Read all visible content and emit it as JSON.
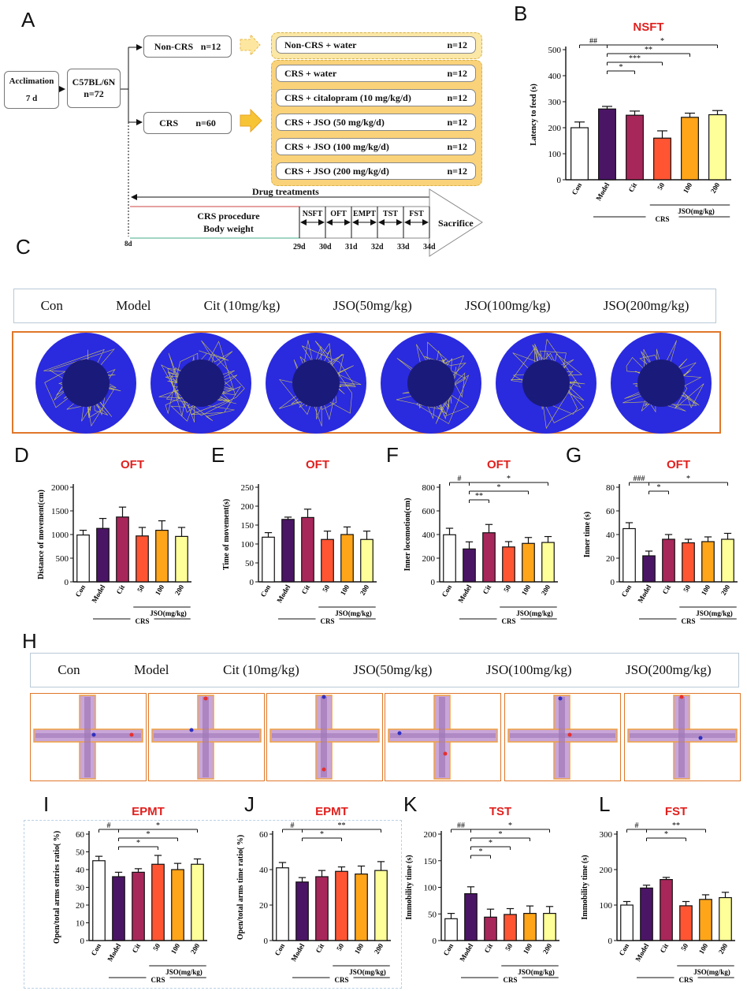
{
  "colors": {
    "con": "#ffffff",
    "model": "#4b1566",
    "cit": "#a8275a",
    "jso50": "#ff5533",
    "jso100": "#ffa51a",
    "jso200": "#ffff99",
    "title": "#e0201e"
  },
  "panel_a": {
    "label": "A",
    "acclimation": "Acclimation",
    "acclimation_days": "7 d",
    "strain": "C57BL/6N",
    "strain_n": "n=72",
    "noncrs": "Non-CRS",
    "noncrs_n": "n=12",
    "crs": "CRS",
    "crs_n": "n=60",
    "groups": [
      {
        "name": "Non-CRS + water",
        "n": "n=12"
      },
      {
        "name": "CRS + water",
        "n": "n=12"
      },
      {
        "name": "CRS + citalopram (10 mg/kg/d)",
        "n": "n=12"
      },
      {
        "name": "CRS + JSO (50 mg/kg/d)",
        "n": "n=12"
      },
      {
        "name": "CRS + JSO (100 mg/kg/d)",
        "n": "n=12"
      },
      {
        "name": "CRS + JSO (200 mg/kg/d)",
        "n": "n=12"
      }
    ],
    "drug_treatments": "Drug treatments",
    "crs_procedure": "CRS procedure",
    "body_weight": "Body weight",
    "tests": [
      "NSFT",
      "OFT",
      "EMPT",
      "TST",
      "FST"
    ],
    "days": [
      "8d",
      "29d",
      "30d",
      "31d",
      "32d",
      "33d",
      "34d"
    ],
    "sacrifice": "Sacrifice"
  },
  "panel_c": {
    "label": "C",
    "headers": [
      "Con",
      "Model",
      "Cit (10mg/kg)",
      "JSO(50mg/kg)",
      "JSO(100mg/kg)",
      "JSO(200mg/kg)"
    ]
  },
  "panel_h": {
    "label": "H",
    "headers": [
      "Con",
      "Model",
      "Cit (10mg/kg)",
      "JSO(50mg/kg)",
      "JSO(100mg/kg)",
      "JSO(200mg/kg)"
    ]
  },
  "chart_data": [
    {
      "panel": "B",
      "type": "bar",
      "title": "NSFT",
      "ylabel": "Latency to feed (s)",
      "ylim": [
        0,
        500
      ],
      "yticks": [
        0,
        100,
        200,
        300,
        400,
        500
      ],
      "categories": [
        "Con",
        "Model",
        "Cit",
        "50",
        "100",
        "200"
      ],
      "values": [
        200,
        272,
        248,
        160,
        240,
        250
      ],
      "errors": [
        22,
        10,
        16,
        28,
        16,
        16
      ],
      "group_label": "JSO(mg/kg)",
      "crs_label": "CRS",
      "sig": [
        {
          "from": 0,
          "to": 1,
          "text": "##"
        },
        {
          "from": 1,
          "to": 5,
          "text": "*"
        },
        {
          "from": 1,
          "to": 4,
          "text": "**"
        },
        {
          "from": 1,
          "to": 3,
          "text": "***"
        },
        {
          "from": 1,
          "to": 2,
          "text": "*"
        }
      ]
    },
    {
      "panel": "D",
      "type": "bar",
      "title": "OFT",
      "ylabel": "Distance of movement(cm)",
      "ylim": [
        0,
        2000
      ],
      "yticks": [
        0,
        500,
        1000,
        1500,
        2000
      ],
      "categories": [
        "Con",
        "Model",
        "Cit",
        "50",
        "100",
        "200"
      ],
      "values": [
        990,
        1130,
        1370,
        970,
        1090,
        960
      ],
      "errors": [
        100,
        210,
        210,
        180,
        200,
        190
      ],
      "group_label": "JSO(mg/kg)",
      "crs_label": "CRS",
      "sig": []
    },
    {
      "panel": "E",
      "type": "bar",
      "title": "OFT",
      "ylabel": "Time of movement(s)",
      "ylim": [
        0,
        250
      ],
      "yticks": [
        0,
        50,
        100,
        150,
        200,
        250
      ],
      "categories": [
        "Con",
        "Model",
        "Cit",
        "50",
        "100",
        "200"
      ],
      "values": [
        118,
        165,
        170,
        112,
        125,
        112
      ],
      "errors": [
        12,
        6,
        22,
        22,
        20,
        22
      ],
      "group_label": "JSO(mg/kg)",
      "crs_label": "CRS",
      "sig": []
    },
    {
      "panel": "F",
      "type": "bar",
      "title": "OFT",
      "ylabel": "Inner locomotion(cm)",
      "ylim": [
        0,
        800
      ],
      "yticks": [
        0,
        200,
        400,
        600,
        800
      ],
      "categories": [
        "Con",
        "Model",
        "Cit",
        "50",
        "100",
        "200"
      ],
      "values": [
        398,
        278,
        415,
        295,
        325,
        333
      ],
      "errors": [
        55,
        60,
        70,
        45,
        50,
        50
      ],
      "group_label": "JSO(mg/kg)",
      "crs_label": "CRS",
      "sig": [
        {
          "from": 0,
          "to": 1,
          "text": "#"
        },
        {
          "from": 1,
          "to": 5,
          "text": "*"
        },
        {
          "from": 1,
          "to": 4,
          "text": "*"
        },
        {
          "from": 1,
          "to": 2,
          "text": "**"
        }
      ]
    },
    {
      "panel": "G",
      "type": "bar",
      "title": "OFT",
      "ylabel": "Inner time (s)",
      "ylim": [
        0,
        80
      ],
      "yticks": [
        0,
        20,
        40,
        60,
        80
      ],
      "categories": [
        "Con",
        "Model",
        "Cit",
        "50",
        "100",
        "200"
      ],
      "values": [
        45,
        22,
        36,
        33,
        34,
        36
      ],
      "errors": [
        5,
        4,
        4,
        3,
        4,
        5
      ],
      "group_label": "JSO(mg/kg)",
      "crs_label": "CRS",
      "sig": [
        {
          "from": 0,
          "to": 1,
          "text": "###"
        },
        {
          "from": 1,
          "to": 5,
          "text": "*"
        },
        {
          "from": 1,
          "to": 2,
          "text": "*"
        }
      ]
    },
    {
      "panel": "I",
      "type": "bar",
      "title": "EPMT",
      "ylabel": "Open/total arms entries ratio( %)",
      "ylim": [
        0,
        60
      ],
      "yticks": [
        0,
        10,
        20,
        30,
        40,
        50,
        60
      ],
      "categories": [
        "Con",
        "Model",
        "Cit",
        "50",
        "100",
        "200"
      ],
      "values": [
        45,
        36,
        38.5,
        43,
        40,
        43
      ],
      "errors": [
        2.5,
        2.5,
        2,
        5,
        3.5,
        3
      ],
      "group_label": "JSO(mg/kg)",
      "crs_label": "CRS",
      "sig": [
        {
          "from": 0,
          "to": 1,
          "text": "#"
        },
        {
          "from": 1,
          "to": 5,
          "text": "*"
        },
        {
          "from": 1,
          "to": 4,
          "text": "*"
        },
        {
          "from": 1,
          "to": 3,
          "text": "*"
        }
      ]
    },
    {
      "panel": "J",
      "type": "bar",
      "title": "EPMT",
      "ylabel": "Open/total arms time ratio( %)",
      "ylim": [
        0,
        60
      ],
      "yticks": [
        0,
        20,
        40,
        60
      ],
      "categories": [
        "Con",
        "Model",
        "Cit",
        "50",
        "100",
        "200"
      ],
      "values": [
        41,
        33,
        36,
        39,
        37.5,
        39.5
      ],
      "errors": [
        3,
        2.5,
        3.5,
        2.5,
        4.5,
        5
      ],
      "group_label": "JSO(mg/kg)",
      "crs_label": "CRS",
      "sig": [
        {
          "from": 0,
          "to": 1,
          "text": "#"
        },
        {
          "from": 1,
          "to": 5,
          "text": "**"
        },
        {
          "from": 1,
          "to": 3,
          "text": "*"
        }
      ]
    },
    {
      "panel": "K",
      "type": "bar",
      "title": "TST",
      "ylabel": "Immobility time (s)",
      "ylim": [
        0,
        200
      ],
      "yticks": [
        0,
        50,
        100,
        150,
        200
      ],
      "categories": [
        "Con",
        "Model",
        "Cit",
        "50",
        "100",
        "200"
      ],
      "values": [
        41,
        88,
        44,
        49,
        51,
        51
      ],
      "errors": [
        10,
        13,
        15,
        11,
        14,
        13
      ],
      "group_label": "JSO(mg/kg)",
      "crs_label": "CRS",
      "sig": [
        {
          "from": 0,
          "to": 1,
          "text": "##"
        },
        {
          "from": 1,
          "to": 5,
          "text": "*"
        },
        {
          "from": 1,
          "to": 4,
          "text": "*"
        },
        {
          "from": 1,
          "to": 3,
          "text": "*"
        },
        {
          "from": 1,
          "to": 2,
          "text": "*"
        }
      ]
    },
    {
      "panel": "L",
      "type": "bar",
      "title": "FST",
      "ylabel": "Immobility time (s)",
      "ylim": [
        0,
        300
      ],
      "yticks": [
        0,
        100,
        200,
        300
      ],
      "categories": [
        "Con",
        "Model",
        "Cit",
        "50",
        "100",
        "200"
      ],
      "values": [
        100,
        148,
        172,
        98,
        116,
        121
      ],
      "errors": [
        10,
        8,
        6,
        12,
        13,
        15
      ],
      "group_label": "JSO(mg/kg)",
      "crs_label": "CRS",
      "sig": [
        {
          "from": 0,
          "to": 1,
          "text": "#"
        },
        {
          "from": 1,
          "to": 4,
          "text": "**"
        },
        {
          "from": 1,
          "to": 3,
          "text": "*"
        }
      ]
    }
  ]
}
